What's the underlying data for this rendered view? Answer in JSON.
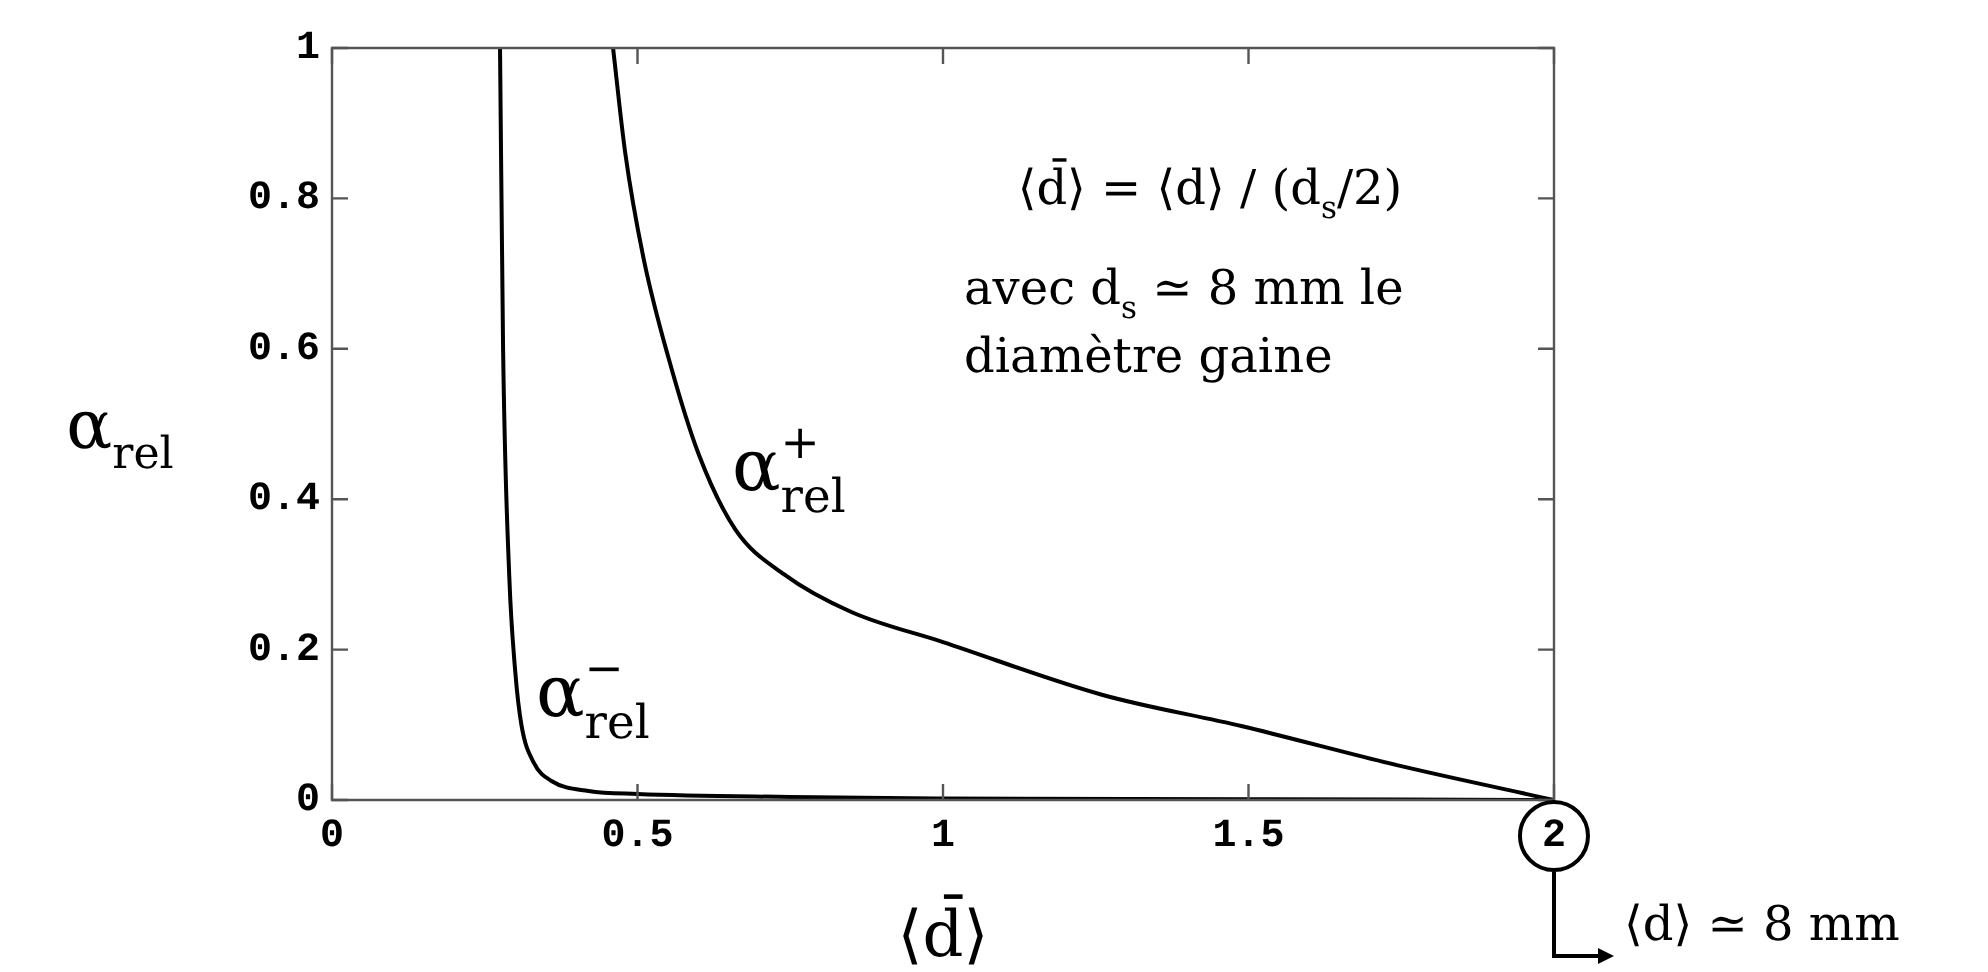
{
  "chart_data": {
    "type": "line",
    "xlabel": "⟨d̄⟩",
    "ylabel": "α$_{rel}$",
    "xlim": [
      0,
      2
    ],
    "xticks": [
      0,
      0.5,
      1,
      1.5,
      2
    ],
    "ylim": [
      0,
      1
    ],
    "yticks": [
      0,
      0.2,
      0.4,
      0.6,
      0.8,
      1
    ],
    "grid": false,
    "legend": false,
    "marker": "none",
    "line_style": "solid",
    "series": [
      {
        "name": "α$^{−}$$_{rel}$",
        "color": "#000000",
        "x": [
          0.275,
          0.28,
          0.29,
          0.3,
          0.31,
          0.33,
          0.36,
          0.42,
          0.5,
          0.75,
          1,
          1.5,
          2
        ],
        "values": [
          1,
          0.6,
          0.3,
          0.17,
          0.1,
          0.05,
          0.025,
          0.012,
          0.008,
          0.004,
          0.002,
          0.001,
          0
        ]
      },
      {
        "name": "α$^{+}$$_{rel}$",
        "color": "#000000",
        "x": [
          0.46,
          0.48,
          0.51,
          0.55,
          0.6,
          0.66,
          0.74,
          0.85,
          1.0,
          1.26,
          1.49,
          1.75,
          2
        ],
        "values": [
          1,
          0.86,
          0.72,
          0.59,
          0.46,
          0.36,
          0.3,
          0.25,
          0.21,
          0.14,
          0.098,
          0.045,
          0
        ]
      }
    ],
    "annotations": [
      "⟨d̄⟩ = ⟨d⟩ / (d$_{s}$/2)",
      "avec d$_{s}$ ≃ 8 mm le diamètre gaine",
      "⟨d⟩ ≃ 8 mm"
    ]
  }
}
